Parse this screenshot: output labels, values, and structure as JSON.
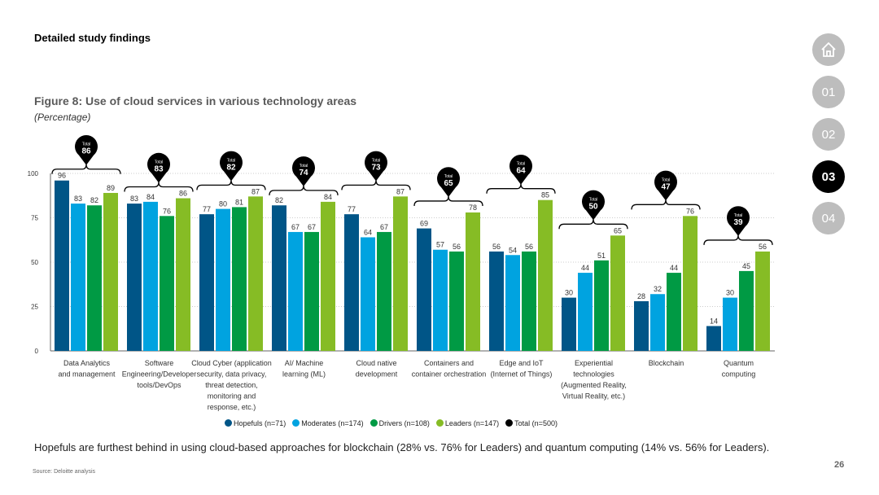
{
  "header": {
    "title": "Detailed study findings"
  },
  "nav": {
    "home": "home-icon",
    "items": [
      "01",
      "02",
      "03",
      "04"
    ],
    "active": "03"
  },
  "caption": "Hopefuls are furthest behind in using cloud-based approaches for blockchain (28% vs. 76% for Leaders) and quantum computing (14% vs. 56% for Leaders).",
  "source": "Source: Deloitte analysis",
  "page_number": "26",
  "chart_data": {
    "type": "bar",
    "title": "Figure 8: Use of cloud services in various technology areas",
    "subtitle": "(Percentage)",
    "ylim": [
      0,
      100
    ],
    "yticks": [
      "0",
      "25",
      "50",
      "75",
      "100"
    ],
    "categories": [
      [
        "Data Analytics",
        "and management"
      ],
      [
        "Software",
        "Engineering/Developer",
        "tools/DevOps"
      ],
      [
        "Cloud Cyber (application",
        "security, data privacy,",
        "threat detection,",
        "monitoring and",
        "response, etc.)"
      ],
      [
        "AI/ Machine",
        "learning (ML)"
      ],
      [
        "Cloud native",
        "development"
      ],
      [
        "Containers and",
        "container orchestration"
      ],
      [
        "Edge and IoT",
        "(Internet of Things)"
      ],
      [
        "Experiential",
        "technologies",
        "(Augmented Reality,",
        "Virtual Reality, etc.)"
      ],
      [
        "Blockchain"
      ],
      [
        "Quantum",
        "computing"
      ]
    ],
    "series": [
      {
        "name": "Hopefuls (n=71)",
        "color": "#005587",
        "values": [
          96,
          83,
          77,
          82,
          77,
          69,
          56,
          30,
          28,
          14
        ]
      },
      {
        "name": "Moderates (n=174)",
        "color": "#00a3e0",
        "values": [
          83,
          84,
          80,
          67,
          64,
          57,
          54,
          44,
          32,
          30
        ]
      },
      {
        "name": "Drivers (n=108)",
        "color": "#009a44",
        "values": [
          82,
          76,
          81,
          67,
          67,
          56,
          56,
          51,
          44,
          45
        ]
      },
      {
        "name": "Leaders (n=147)",
        "color": "#86bc25",
        "values": [
          89,
          86,
          87,
          84,
          87,
          78,
          85,
          65,
          76,
          56
        ]
      }
    ],
    "total": {
      "name": "Total  (n=500)",
      "label": "Total",
      "color": "#000000",
      "values": [
        86,
        83,
        82,
        74,
        73,
        65,
        64,
        50,
        47,
        39
      ]
    }
  }
}
